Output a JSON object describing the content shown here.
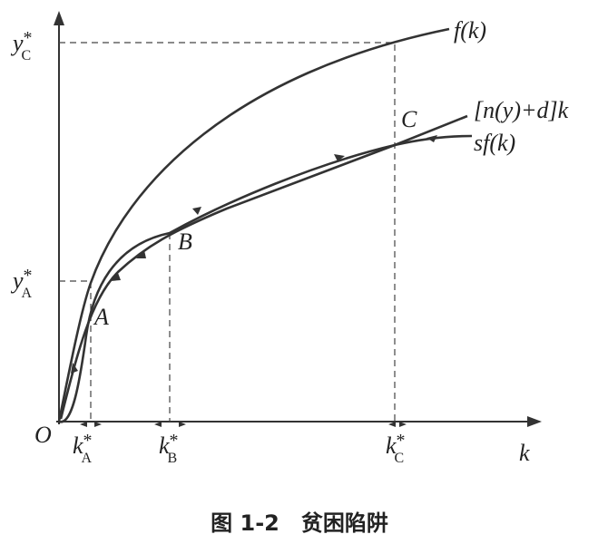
{
  "axes": {
    "origin": "O",
    "x_label": "k",
    "x_ticks": [
      {
        "base": "k",
        "sup": "*",
        "sub": "A"
      },
      {
        "base": "k",
        "sup": "*",
        "sub": "B"
      },
      {
        "base": "k",
        "sup": "*",
        "sub": "C"
      }
    ],
    "y_ticks": [
      {
        "base": "y",
        "sup": "*",
        "sub": "C"
      },
      {
        "base": "y",
        "sup": "*",
        "sub": "A"
      }
    ]
  },
  "curves": [
    {
      "label": "f(k)"
    },
    {
      "label": "[n(y)+d]k"
    },
    {
      "label": "sf(k)"
    }
  ],
  "points": [
    "A",
    "B",
    "C"
  ],
  "caption": "图 1-2　贫困陷阱"
}
